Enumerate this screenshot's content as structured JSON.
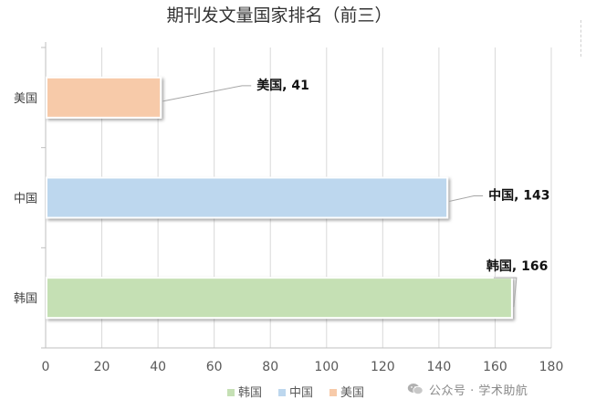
{
  "chart_data": {
    "type": "bar",
    "orientation": "horizontal",
    "title": "期刊发文量国家排名（前三）",
    "categories": [
      "美国",
      "中国",
      "韩国"
    ],
    "values": [
      41,
      143,
      166
    ],
    "data_labels": [
      "美国, 41",
      "中国, 143",
      "韩国, 166"
    ],
    "colors": [
      "#f7caa9",
      "#bdd7ee",
      "#c5e0b4"
    ],
    "xlim": [
      0,
      180
    ],
    "xticks": [
      "0",
      "20",
      "40",
      "60",
      "80",
      "100",
      "120",
      "140",
      "160",
      "180"
    ],
    "grid": true,
    "legend": {
      "placement": "bottom",
      "entries": [
        {
          "label": "韩国",
          "color": "#c5e0b4"
        },
        {
          "label": "中国",
          "color": "#bdd7ee"
        },
        {
          "label": "美国",
          "color": "#f7caa9"
        }
      ]
    }
  },
  "watermark": {
    "icon": "wechat-icon",
    "text": "公众号 · 学术助航"
  }
}
